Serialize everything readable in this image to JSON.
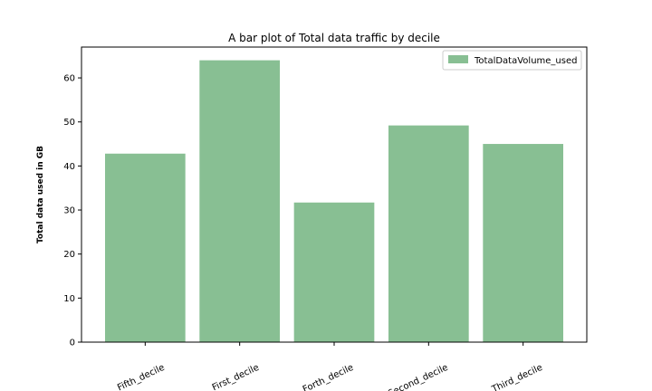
{
  "chart_data": {
    "type": "bar",
    "title": "A bar plot of Total data traffic by decile",
    "xlabel": "",
    "ylabel": "Total data used in GB",
    "categories": [
      "Fifth_decile",
      "First_decile",
      "Forth_decile",
      "Second_decile",
      "Third_decile"
    ],
    "series": [
      {
        "name": "TotalDataVolume_used",
        "values": [
          42.8,
          64.0,
          31.7,
          49.2,
          45.0
        ]
      }
    ],
    "ylim": [
      0,
      67
    ],
    "yticks": [
      0,
      10,
      20,
      30,
      40,
      50,
      60
    ],
    "bar_color": "#88bf93",
    "grid": false,
    "legend_position": "top-right",
    "xtick_rotation": "rotated"
  }
}
